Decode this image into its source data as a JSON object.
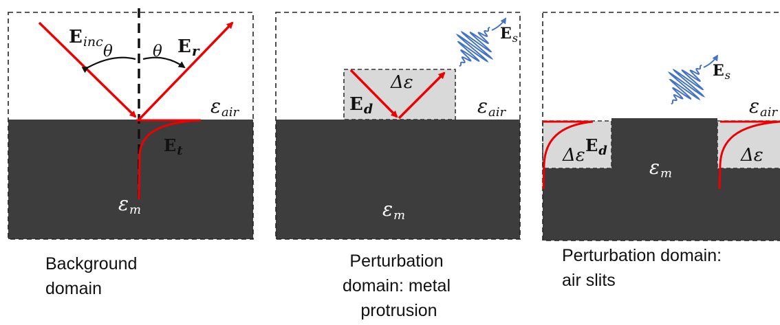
{
  "panels": [
    {
      "caption": [
        "Background",
        "domain"
      ],
      "labels": {
        "e_inc_main": "E",
        "e_inc_sub": "inc",
        "e_r_main": "E",
        "e_r_sub": "r",
        "e_t_main": "E",
        "e_t_sub": "t",
        "theta_left": "θ",
        "theta_right": "θ",
        "eps_air_main": "ε",
        "eps_air_sub": "air",
        "eps_m_main": "ε",
        "eps_m_sub": "m"
      }
    },
    {
      "caption": [
        "Perturbation",
        "domain: metal",
        "protrusion"
      ],
      "labels": {
        "e_d_main": "E",
        "e_d_sub": "d",
        "delta_eps": "Δε",
        "e_s_main": "E",
        "e_s_sub": "s",
        "eps_air_main": "ε",
        "eps_air_sub": "air",
        "eps_m_main": "ε",
        "eps_m_sub": "m"
      }
    },
    {
      "caption": [
        "Perturbation domain:",
        "air slits"
      ],
      "labels": {
        "delta_eps_left": "Δε",
        "e_d_main": "E",
        "e_d_sub": "d",
        "delta_eps_right": "Δε",
        "e_s_main": "E",
        "e_s_sub": "s",
        "eps_air_main": "ε",
        "eps_air_sub": "air",
        "eps_m_main": "ε",
        "eps_m_sub": "m"
      }
    }
  ],
  "colors": {
    "metal": "#3d3d3d",
    "perturbation": "#d9d9d9",
    "field_line": "#ee0000",
    "scattered_wave": "#4472c4",
    "border": "#222222",
    "text_on_metal": "#ffffff"
  }
}
